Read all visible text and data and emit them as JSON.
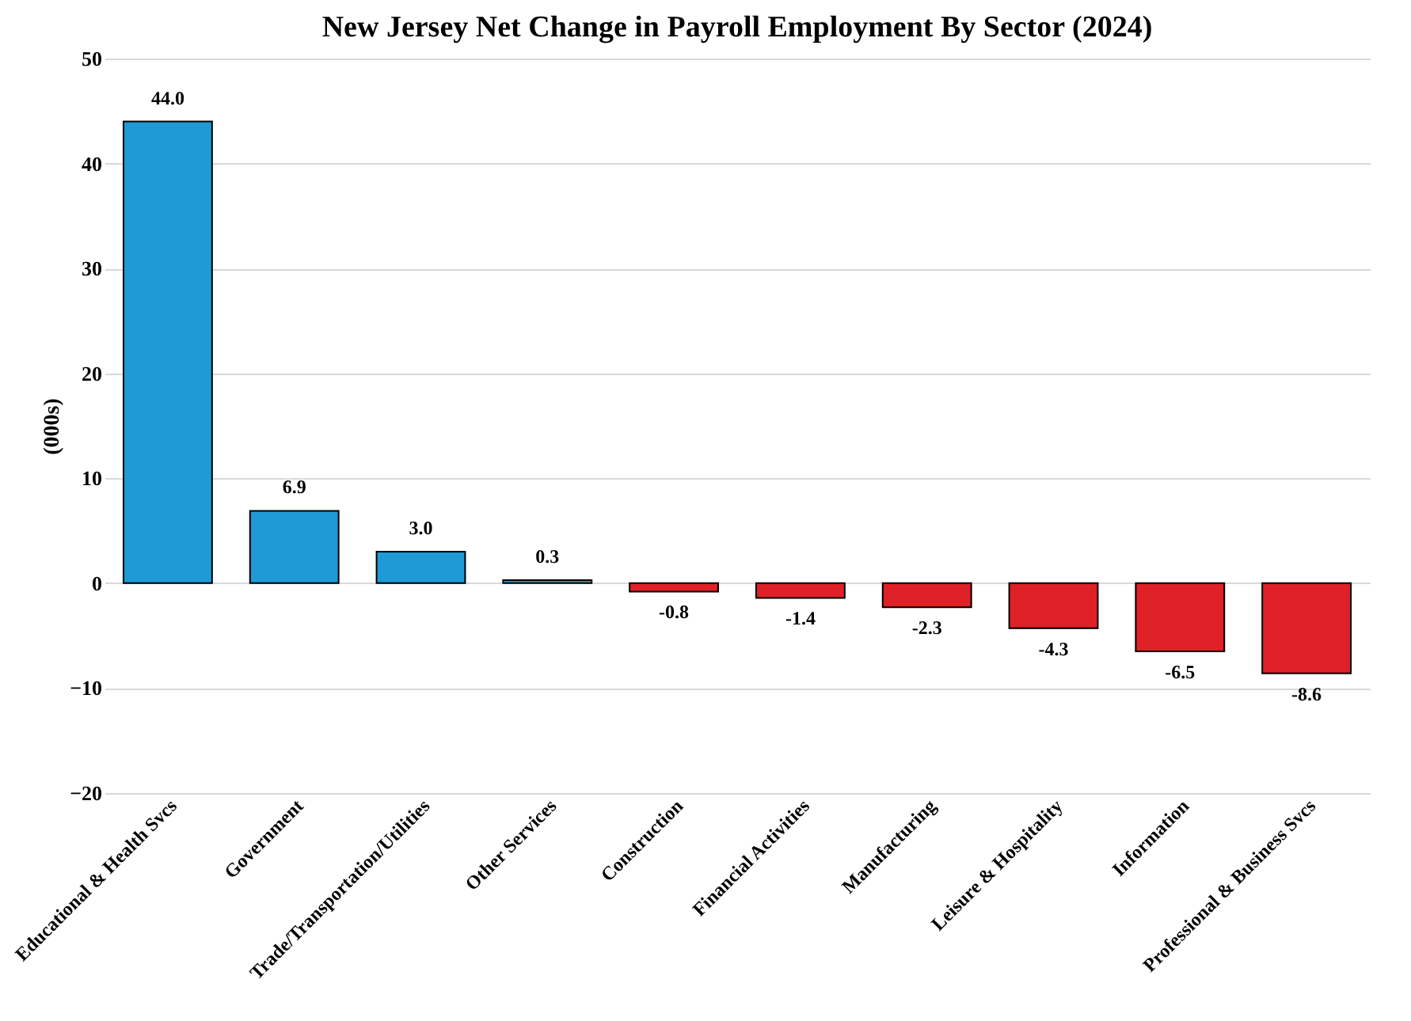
{
  "chart_data": {
    "type": "bar",
    "title": "New Jersey Net Change in Payroll Employment By Sector (2024)",
    "ylabel": "(000s)",
    "categories": [
      "Educational & Health Svcs",
      "Government",
      "Trade/Transportation/Utilities",
      "Other Services",
      "Construction",
      "Financial Activities",
      "Manufacturing",
      "Leisure & Hospitality",
      "Information",
      "Professional & Business Svcs"
    ],
    "values": [
      44.0,
      6.9,
      3.0,
      0.3,
      -0.8,
      -1.4,
      -2.3,
      -4.3,
      -6.5,
      -8.6
    ],
    "colors": [
      "#1f9ad6",
      "#1f9ad6",
      "#1f9ad6",
      "#1f9ad6",
      "#e02027",
      "#e02027",
      "#e02027",
      "#e02027",
      "#e02027",
      "#e02027"
    ],
    "value_labels": [
      "44.0",
      "6.9",
      "3.0",
      "0.3",
      "-0.8",
      "-1.4",
      "-2.3",
      "-4.3",
      "-6.5",
      "-8.6"
    ],
    "ylim": [
      -20,
      50
    ],
    "yticks": [
      -20,
      -10,
      0,
      10,
      20,
      30,
      40,
      50
    ],
    "grid": "y"
  }
}
